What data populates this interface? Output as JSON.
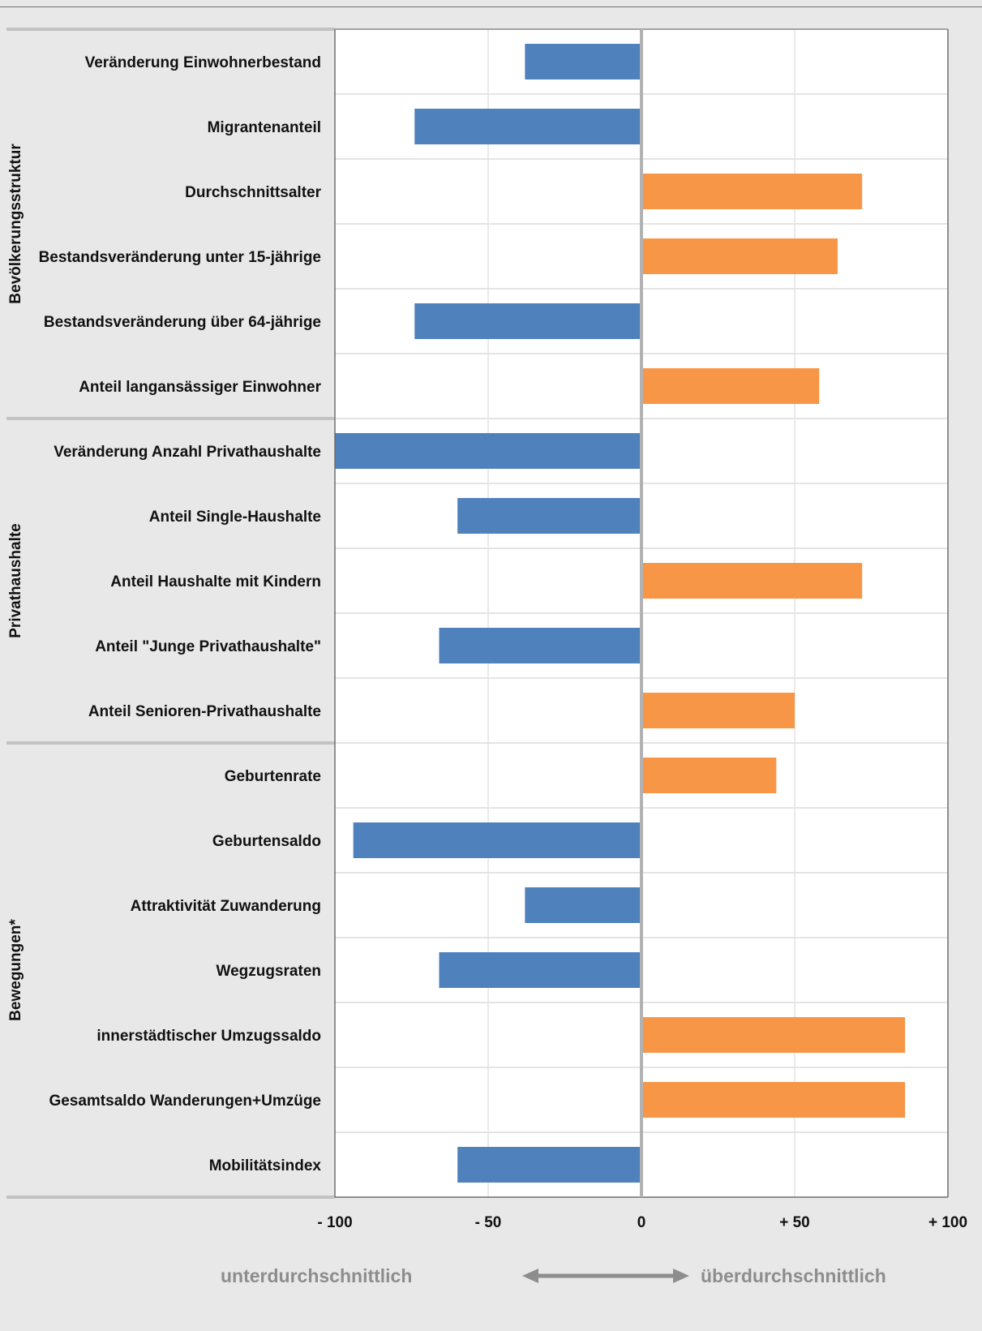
{
  "chart_data": {
    "type": "bar",
    "orientation": "horizontal",
    "xlim": [
      -100,
      100
    ],
    "x_ticks": [
      {
        "value": -100,
        "label": "- 100"
      },
      {
        "value": -50,
        "label": "- 50"
      },
      {
        "value": 0,
        "label": "0"
      },
      {
        "value": 50,
        "label": "+ 50"
      },
      {
        "value": 100,
        "label": "+ 100"
      }
    ],
    "grid": true,
    "negative_color": "#4f81bd",
    "positive_color": "#f79646",
    "groups": [
      {
        "name": "Bevölkerungsstruktur",
        "items": [
          {
            "label": "Veränderung Einwohnerbestand",
            "value": -38
          },
          {
            "label": "Migrantenanteil",
            "value": -74
          },
          {
            "label": "Durchschnittsalter",
            "value": 72
          },
          {
            "label": "Bestandsveränderung unter 15-jährige",
            "value": 64
          },
          {
            "label": "Bestandsveränderung über 64-jährige",
            "value": -74
          },
          {
            "label": "Anteil langansässiger Einwohner",
            "value": 58
          }
        ]
      },
      {
        "name": "Privathaushalte",
        "items": [
          {
            "label": "Veränderung Anzahl Privathaushalte",
            "value": -100
          },
          {
            "label": "Anteil Single-Haushalte",
            "value": -60
          },
          {
            "label": "Anteil Haushalte mit Kindern",
            "value": 72
          },
          {
            "label": "Anteil \"Junge Privathaushalte\"",
            "value": -66
          },
          {
            "label": "Anteil Senioren-Privathaushalte",
            "value": 50
          }
        ]
      },
      {
        "name": "Bewegungen*",
        "items": [
          {
            "label": "Geburtenrate",
            "value": 44
          },
          {
            "label": "Geburtensaldo",
            "value": -94
          },
          {
            "label": "Attraktivität Zuwanderung",
            "value": -38
          },
          {
            "label": "Wegzugsraten",
            "value": -66
          },
          {
            "label": "innerstädtischer Umzugssaldo",
            "value": 86
          },
          {
            "label": "Gesamtsaldo Wanderungen+Umzüge",
            "value": 86
          },
          {
            "label": "Mobilitätsindex",
            "value": -60
          }
        ]
      }
    ],
    "scale_captions": {
      "left": "unterdurchschnittlich",
      "right": "überdurchschnittlich"
    }
  }
}
